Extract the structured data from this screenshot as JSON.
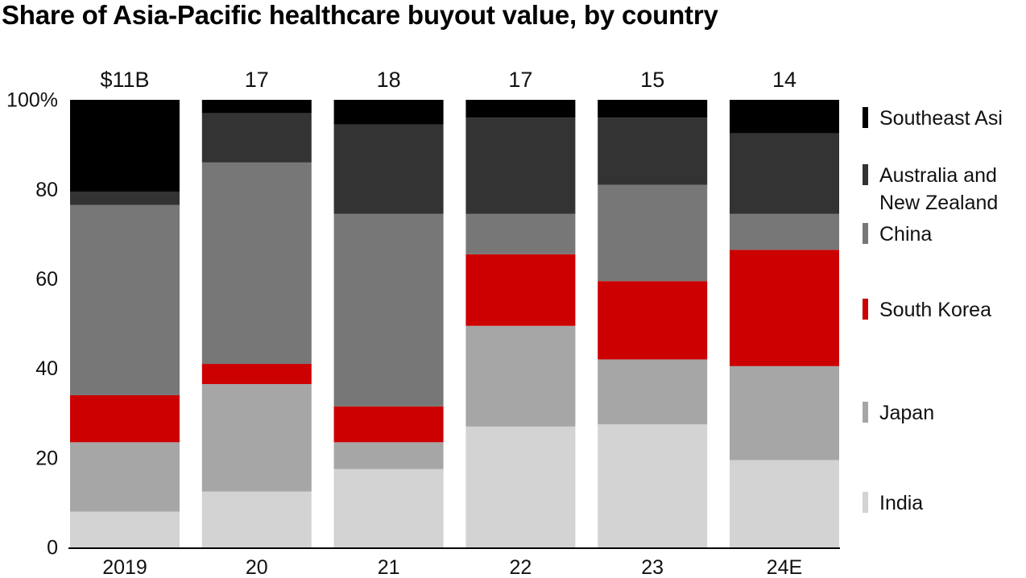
{
  "chart_data": {
    "type": "bar",
    "stacked": true,
    "normalized": true,
    "title": "Share of Asia-Pacific healthcare buyout value, by country",
    "categories": [
      "2019",
      "20",
      "21",
      "22",
      "23",
      "24E"
    ],
    "totals": [
      "$11B",
      "17",
      "18",
      "17",
      "15",
      "14"
    ],
    "ylim": [
      0,
      100
    ],
    "y_ticks": [
      "100%",
      "80",
      "60",
      "40",
      "20",
      "0"
    ],
    "y_tick_values": [
      100,
      80,
      60,
      40,
      20,
      0
    ],
    "legend_position": "right",
    "series": [
      {
        "name": "India",
        "color": "#d3d3d3",
        "values": [
          8,
          12.5,
          17.5,
          27,
          27.5,
          19.5
        ]
      },
      {
        "name": "Japan",
        "color": "#a6a6a6",
        "values": [
          15.5,
          24,
          6,
          22.5,
          14.5,
          21
        ]
      },
      {
        "name": "South Korea",
        "color": "#cc0000",
        "values": [
          10.5,
          4.5,
          8,
          16,
          17.5,
          26
        ]
      },
      {
        "name": "China",
        "color": "#777777",
        "values": [
          42.5,
          45,
          43,
          9,
          21.5,
          8
        ]
      },
      {
        "name": "Australia and New Zealand",
        "color": "#333333",
        "values": [
          3,
          11,
          20,
          21.5,
          15,
          18
        ]
      },
      {
        "name": "Southeast Asi",
        "color": "#000000",
        "values": [
          20.5,
          3,
          5.5,
          4,
          4,
          7.5
        ]
      }
    ]
  }
}
